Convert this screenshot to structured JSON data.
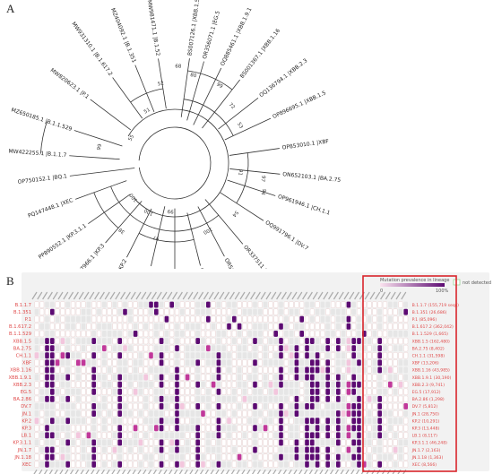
{
  "panel_a_label": "A",
  "panel_b_label": "B",
  "tree": {
    "tips": [
      "MW422255.1 |B.1.1.7",
      "MZ650185.1 |B.1.1.529",
      "MW820623.1 |P.1",
      "MW931310.1 |B.1.617.2",
      "MZ404092.1 |B.1.351",
      "MW981471.1 |B.1.52",
      "BS007126.1 |XBB.1.5.2",
      "OR356071.1 |EG.5",
      "OQ885461.1 |XBB.1.9.1",
      "BS001367.1 |XBB.1.16",
      "OQ136794.1 |XBB.2.3",
      "OP896695.1 |XBB.1.5",
      "OP853010.1 |XBF",
      "ON652103.1 |BA.2.75",
      "OP961946.1 |CH.1.1",
      "OQ991796.1 |DV.7",
      "OR337511.1 |BA.2.86",
      "OR567931.1 |JN.1",
      "OR556804.1 |JN.1.7",
      "OQ614756.1 |JN.1.18",
      "PP719744.1 |LB.1",
      "PP774095.1 |KP.2",
      "PV147966.1 |KP.3",
      "PP890552.1 |KP.3.1.1",
      "PQ147448.1 |XEC",
      "OP750152.1 |BQ.1"
    ],
    "bootstrap": [
      "99",
      "55",
      "51",
      "52",
      "80",
      "68",
      "99",
      "72",
      "53",
      "91",
      "97",
      "94",
      "54",
      "100",
      "97",
      "100",
      "99",
      "38",
      "100"
    ]
  },
  "heatmap": {
    "legend_title": "Mutation prevalence in lineage",
    "legend_min": "0",
    "legend_max": "100%",
    "not_detected": "not detected",
    "rows_left": [
      "B.1.1.7",
      "B.1.351",
      "P.1",
      "B.1.617.2",
      "B.1.1.529",
      "XBB.1.5",
      "BA.2.75",
      "CH.1.1",
      "XBF",
      "XBB.1.16",
      "XBB.1.9.1",
      "XBB.2.3",
      "EG.5",
      "BA.2.86",
      "DV.7",
      "JN.1",
      "KP.2",
      "KP.3",
      "LB.1",
      "KP.3.1.1",
      "JN.1.7",
      "JN.1.18",
      "XEC"
    ],
    "rows_right": [
      "B.1.1.7 (155,719 seqs)",
      "B.1.351 (26,686)",
      "P.1 (85,096)",
      "B.1.617.2 (362,042)",
      "B.1.1.529 (1,665)",
      "XBB.1.5 (162,480)",
      "BA.2.75 (8,402)",
      "CH.1.1 (31,598)",
      "XBF (13,206)",
      "XBB.1.16 (43,985)",
      "XBB.1.9.1 (30,190)",
      "XBB.2.3 (9,741)",
      "EG.5 (17,912)",
      "BA.2.86 (1,298)",
      "DV.7 (5,812)",
      "JN.1 (28,750)",
      "KP.2 (10,291)",
      "KP.3 (13,448)",
      "LB.1 (8,117)",
      "KP.3.1.1 (46,248)",
      "JN.1.7 (2,163)",
      "JN.1.18 (1,363)",
      "XEC (8,566)"
    ],
    "n_cols": 72,
    "highlight_color": "#d9262c",
    "cell_high": "#5c0a72",
    "cell_mid": "#c1389a",
    "cell_low": "#f3c6dd"
  },
  "colors": {
    "row_label": "#e04a4a",
    "branch": "#333333"
  }
}
